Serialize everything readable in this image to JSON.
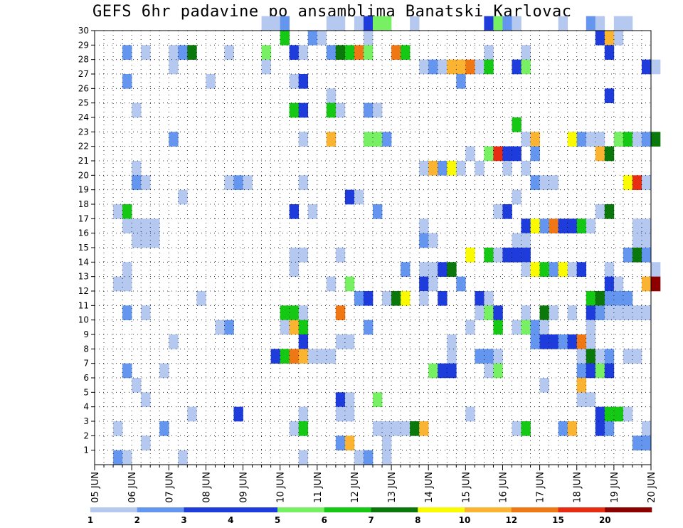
{
  "chart_data": {
    "type": "heatmap",
    "title": "GEFS 6hr padavine po ansamblima Banatski Karlovac",
    "xlabel": "",
    "ylabel": "",
    "x_ticks": [
      "05 JUN",
      "06 JUN",
      "07 JUN",
      "08 JUN",
      "09 JUN",
      "10 JUN",
      "11 JUN",
      "12 JUN",
      "13 JUN",
      "14 JUN",
      "15 JUN",
      "16 JUN",
      "17 JUN",
      "18 JUN",
      "19 JUN",
      "20 JUN"
    ],
    "y_ticks": [
      1,
      2,
      3,
      4,
      5,
      6,
      7,
      8,
      9,
      10,
      11,
      12,
      13,
      14,
      15,
      16,
      17,
      18,
      19,
      20,
      21,
      22,
      23,
      24,
      25,
      26,
      27,
      28,
      29,
      30
    ],
    "x_range": [
      0,
      60
    ],
    "y_range": [
      0,
      30
    ],
    "grid": true,
    "legend": {
      "placement": "bottom",
      "levels": [
        "1",
        "2",
        "3",
        "4",
        "5",
        "6",
        "7",
        "8",
        "10",
        "12",
        "15",
        "20"
      ],
      "colors": [
        "#b4c8f0",
        "#6496f0",
        "#1e3cdc",
        "#1c3ce0",
        "#78f064",
        "#14c814",
        "#0a780a",
        "#fafa00",
        "#fab432",
        "#f07814",
        "#e62d14",
        "#8c0000"
      ]
    },
    "cell_colors": [
      "#b4c8f0",
      "#6496f0",
      "#1e3cdc",
      "#78f064",
      "#14c814",
      "#0a780a",
      "#fafa00",
      "#fab432",
      "#f07814",
      "#e62d14",
      "#8c0000"
    ],
    "cells": [
      [
        18,
        30,
        0
      ],
      [
        19,
        30,
        0
      ],
      [
        20,
        30,
        1
      ],
      [
        25,
        30,
        0
      ],
      [
        26,
        30,
        0
      ],
      [
        28,
        30,
        0
      ],
      [
        29,
        30,
        2
      ],
      [
        30,
        30,
        3
      ],
      [
        31,
        30,
        3
      ],
      [
        34,
        30,
        0
      ],
      [
        42,
        30,
        2
      ],
      [
        43,
        30,
        3
      ],
      [
        44,
        30,
        1
      ],
      [
        45,
        30,
        0
      ],
      [
        50,
        30,
        0
      ],
      [
        53,
        30,
        1
      ],
      [
        54,
        30,
        0
      ],
      [
        56,
        30,
        0
      ],
      [
        57,
        30,
        0
      ],
      [
        20,
        29,
        4
      ],
      [
        23,
        29,
        1
      ],
      [
        24,
        29,
        0
      ],
      [
        29,
        29,
        0
      ],
      [
        54,
        29,
        2
      ],
      [
        55,
        29,
        7
      ],
      [
        56,
        29,
        0
      ],
      [
        3,
        28,
        1
      ],
      [
        5,
        28,
        0
      ],
      [
        8,
        28,
        0
      ],
      [
        9,
        28,
        1
      ],
      [
        10,
        28,
        5
      ],
      [
        14,
        28,
        0
      ],
      [
        18,
        28,
        3
      ],
      [
        21,
        28,
        2
      ],
      [
        22,
        28,
        0
      ],
      [
        25,
        28,
        1
      ],
      [
        26,
        28,
        5
      ],
      [
        27,
        28,
        4
      ],
      [
        28,
        28,
        8
      ],
      [
        29,
        28,
        3
      ],
      [
        32,
        28,
        8
      ],
      [
        33,
        28,
        4
      ],
      [
        42,
        28,
        0
      ],
      [
        46,
        28,
        0
      ],
      [
        55,
        28,
        2
      ],
      [
        8,
        27,
        0
      ],
      [
        18,
        27,
        0
      ],
      [
        35,
        27,
        0
      ],
      [
        36,
        27,
        1
      ],
      [
        37,
        27,
        0
      ],
      [
        38,
        27,
        7
      ],
      [
        39,
        27,
        7
      ],
      [
        40,
        27,
        8
      ],
      [
        41,
        27,
        0
      ],
      [
        42,
        27,
        4
      ],
      [
        45,
        27,
        2
      ],
      [
        46,
        27,
        3
      ],
      [
        59,
        27,
        2
      ],
      [
        60,
        27,
        0
      ],
      [
        3,
        26,
        1
      ],
      [
        12,
        26,
        0
      ],
      [
        21,
        26,
        0
      ],
      [
        22,
        26,
        2
      ],
      [
        39,
        26,
        1
      ],
      [
        25,
        25,
        0
      ],
      [
        55,
        25,
        2
      ],
      [
        4,
        24,
        0
      ],
      [
        21,
        24,
        4
      ],
      [
        22,
        24,
        2
      ],
      [
        25,
        24,
        4
      ],
      [
        26,
        24,
        0
      ],
      [
        29,
        24,
        1
      ],
      [
        30,
        24,
        0
      ],
      [
        45,
        23,
        4
      ],
      [
        8,
        22,
        1
      ],
      [
        22,
        22,
        0
      ],
      [
        25,
        22,
        7
      ],
      [
        29,
        22,
        3
      ],
      [
        30,
        22,
        3
      ],
      [
        31,
        22,
        1
      ],
      [
        46,
        22,
        0
      ],
      [
        47,
        22,
        7
      ],
      [
        51,
        22,
        6
      ],
      [
        52,
        22,
        1
      ],
      [
        53,
        22,
        0
      ],
      [
        54,
        22,
        0
      ],
      [
        56,
        22,
        3
      ],
      [
        57,
        22,
        4
      ],
      [
        58,
        22,
        0
      ],
      [
        59,
        22,
        1
      ],
      [
        60,
        22,
        5
      ],
      [
        40,
        21,
        0
      ],
      [
        42,
        21,
        3
      ],
      [
        43,
        21,
        9
      ],
      [
        44,
        21,
        2
      ],
      [
        45,
        21,
        2
      ],
      [
        47,
        21,
        1
      ],
      [
        54,
        21,
        7
      ],
      [
        55,
        21,
        5
      ],
      [
        4,
        20,
        0
      ],
      [
        35,
        20,
        0
      ],
      [
        36,
        20,
        7
      ],
      [
        37,
        20,
        1
      ],
      [
        38,
        20,
        6
      ],
      [
        39,
        20,
        0
      ],
      [
        41,
        20,
        0
      ],
      [
        44,
        20,
        0
      ],
      [
        46,
        20,
        0
      ],
      [
        4,
        19,
        1
      ],
      [
        5,
        19,
        0
      ],
      [
        14,
        19,
        0
      ],
      [
        15,
        19,
        1
      ],
      [
        16,
        19,
        0
      ],
      [
        22,
        19,
        0
      ],
      [
        47,
        19,
        1
      ],
      [
        48,
        19,
        0
      ],
      [
        49,
        19,
        0
      ],
      [
        57,
        19,
        6
      ],
      [
        58,
        19,
        9
      ],
      [
        59,
        19,
        0
      ],
      [
        9,
        18,
        0
      ],
      [
        27,
        18,
        2
      ],
      [
        28,
        18,
        0
      ],
      [
        45,
        18,
        0
      ],
      [
        2,
        17,
        0
      ],
      [
        3,
        17,
        4
      ],
      [
        21,
        17,
        2
      ],
      [
        23,
        17,
        0
      ],
      [
        30,
        17,
        1
      ],
      [
        43,
        17,
        0
      ],
      [
        44,
        17,
        2
      ],
      [
        54,
        17,
        0
      ],
      [
        55,
        17,
        5
      ],
      [
        3,
        16,
        0
      ],
      [
        4,
        16,
        0
      ],
      [
        5,
        16,
        0
      ],
      [
        6,
        16,
        0
      ],
      [
        35,
        16,
        0
      ],
      [
        46,
        16,
        2
      ],
      [
        47,
        16,
        6
      ],
      [
        48,
        16,
        1
      ],
      [
        49,
        16,
        8
      ],
      [
        50,
        16,
        2
      ],
      [
        51,
        16,
        2
      ],
      [
        52,
        16,
        4
      ],
      [
        53,
        16,
        0
      ],
      [
        58,
        16,
        0
      ],
      [
        59,
        16,
        0
      ],
      [
        4,
        15,
        0
      ],
      [
        5,
        15,
        0
      ],
      [
        6,
        15,
        0
      ],
      [
        35,
        15,
        1
      ],
      [
        36,
        15,
        0
      ],
      [
        45,
        15,
        0
      ],
      [
        46,
        15,
        0
      ],
      [
        58,
        15,
        0
      ],
      [
        59,
        15,
        0
      ],
      [
        21,
        14,
        0
      ],
      [
        22,
        14,
        0
      ],
      [
        26,
        14,
        0
      ],
      [
        40,
        14,
        6
      ],
      [
        42,
        14,
        4
      ],
      [
        43,
        14,
        0
      ],
      [
        44,
        14,
        2
      ],
      [
        45,
        14,
        2
      ],
      [
        46,
        14,
        2
      ],
      [
        57,
        14,
        1
      ],
      [
        58,
        14,
        5
      ],
      [
        59,
        14,
        1
      ],
      [
        3,
        13,
        0
      ],
      [
        21,
        13,
        0
      ],
      [
        33,
        13,
        1
      ],
      [
        35,
        13,
        0
      ],
      [
        36,
        13,
        0
      ],
      [
        37,
        13,
        2
      ],
      [
        38,
        13,
        5
      ],
      [
        46,
        13,
        0
      ],
      [
        47,
        13,
        6
      ],
      [
        48,
        13,
        4
      ],
      [
        49,
        13,
        1
      ],
      [
        50,
        13,
        6
      ],
      [
        51,
        13,
        0
      ],
      [
        52,
        13,
        2
      ],
      [
        55,
        13,
        0
      ],
      [
        60,
        13,
        0
      ],
      [
        2,
        12,
        0
      ],
      [
        3,
        12,
        0
      ],
      [
        25,
        12,
        0
      ],
      [
        27,
        12,
        3
      ],
      [
        35,
        12,
        2
      ],
      [
        36,
        12,
        0
      ],
      [
        39,
        12,
        1
      ],
      [
        55,
        12,
        2
      ],
      [
        56,
        12,
        0
      ],
      [
        59,
        12,
        7
      ],
      [
        60,
        12,
        10
      ],
      [
        11,
        11,
        0
      ],
      [
        28,
        11,
        1
      ],
      [
        29,
        11,
        2
      ],
      [
        31,
        11,
        0
      ],
      [
        32,
        11,
        5
      ],
      [
        33,
        11,
        6
      ],
      [
        35,
        11,
        0
      ],
      [
        37,
        11,
        2
      ],
      [
        41,
        11,
        2
      ],
      [
        42,
        11,
        0
      ],
      [
        53,
        11,
        4
      ],
      [
        54,
        11,
        5
      ],
      [
        55,
        11,
        1
      ],
      [
        56,
        11,
        1
      ],
      [
        57,
        11,
        1
      ],
      [
        3,
        10,
        1
      ],
      [
        5,
        10,
        0
      ],
      [
        20,
        10,
        4
      ],
      [
        21,
        10,
        4
      ],
      [
        22,
        10,
        0
      ],
      [
        26,
        10,
        8
      ],
      [
        41,
        10,
        0
      ],
      [
        42,
        10,
        3
      ],
      [
        43,
        10,
        2
      ],
      [
        46,
        10,
        0
      ],
      [
        48,
        10,
        5
      ],
      [
        49,
        10,
        0
      ],
      [
        51,
        10,
        0
      ],
      [
        53,
        10,
        2
      ],
      [
        54,
        10,
        1
      ],
      [
        55,
        10,
        0
      ],
      [
        56,
        10,
        0
      ],
      [
        57,
        10,
        0
      ],
      [
        58,
        10,
        0
      ],
      [
        59,
        10,
        0
      ],
      [
        13,
        9,
        0
      ],
      [
        14,
        9,
        1
      ],
      [
        20,
        9,
        0
      ],
      [
        21,
        9,
        7
      ],
      [
        22,
        9,
        4
      ],
      [
        29,
        9,
        1
      ],
      [
        40,
        9,
        0
      ],
      [
        43,
        9,
        4
      ],
      [
        45,
        9,
        0
      ],
      [
        46,
        9,
        3
      ],
      [
        47,
        9,
        1
      ],
      [
        48,
        9,
        0
      ],
      [
        53,
        9,
        0
      ],
      [
        8,
        8,
        0
      ],
      [
        22,
        8,
        2
      ],
      [
        26,
        8,
        0
      ],
      [
        27,
        8,
        0
      ],
      [
        38,
        8,
        0
      ],
      [
        47,
        8,
        1
      ],
      [
        48,
        8,
        2
      ],
      [
        49,
        8,
        2
      ],
      [
        50,
        8,
        1
      ],
      [
        51,
        8,
        2
      ],
      [
        52,
        8,
        8
      ],
      [
        53,
        8,
        0
      ],
      [
        19,
        7,
        2
      ],
      [
        20,
        7,
        4
      ],
      [
        21,
        7,
        8
      ],
      [
        22,
        7,
        7
      ],
      [
        23,
        7,
        0
      ],
      [
        24,
        7,
        0
      ],
      [
        25,
        7,
        0
      ],
      [
        38,
        7,
        0
      ],
      [
        41,
        7,
        1
      ],
      [
        42,
        7,
        1
      ],
      [
        43,
        7,
        0
      ],
      [
        52,
        7,
        0
      ],
      [
        53,
        7,
        5
      ],
      [
        54,
        7,
        0
      ],
      [
        55,
        7,
        1
      ],
      [
        57,
        7,
        0
      ],
      [
        58,
        7,
        0
      ],
      [
        3,
        6,
        1
      ],
      [
        7,
        6,
        0
      ],
      [
        36,
        6,
        3
      ],
      [
        37,
        6,
        2
      ],
      [
        38,
        6,
        2
      ],
      [
        42,
        6,
        0
      ],
      [
        43,
        6,
        3
      ],
      [
        52,
        6,
        1
      ],
      [
        53,
        6,
        2
      ],
      [
        54,
        6,
        3
      ],
      [
        55,
        6,
        2
      ],
      [
        4,
        5,
        0
      ],
      [
        48,
        5,
        0
      ],
      [
        52,
        5,
        7
      ],
      [
        5,
        4,
        0
      ],
      [
        26,
        4,
        2
      ],
      [
        27,
        4,
        0
      ],
      [
        30,
        4,
        3
      ],
      [
        52,
        4,
        0
      ],
      [
        53,
        4,
        0
      ],
      [
        10,
        3,
        0
      ],
      [
        15,
        3,
        2
      ],
      [
        22,
        3,
        0
      ],
      [
        26,
        3,
        0
      ],
      [
        27,
        3,
        0
      ],
      [
        40,
        3,
        0
      ],
      [
        54,
        3,
        2
      ],
      [
        55,
        3,
        4
      ],
      [
        56,
        3,
        4
      ],
      [
        57,
        3,
        0
      ],
      [
        2,
        2,
        0
      ],
      [
        7,
        2,
        1
      ],
      [
        21,
        2,
        0
      ],
      [
        22,
        2,
        4
      ],
      [
        30,
        2,
        0
      ],
      [
        31,
        2,
        0
      ],
      [
        32,
        2,
        0
      ],
      [
        33,
        2,
        0
      ],
      [
        34,
        2,
        5
      ],
      [
        35,
        2,
        7
      ],
      [
        45,
        2,
        0
      ],
      [
        46,
        2,
        4
      ],
      [
        50,
        2,
        1
      ],
      [
        51,
        2,
        7
      ],
      [
        54,
        2,
        2
      ],
      [
        55,
        2,
        1
      ],
      [
        59,
        2,
        0
      ],
      [
        5,
        1,
        0
      ],
      [
        26,
        1,
        1
      ],
      [
        27,
        1,
        7
      ],
      [
        31,
        1,
        0
      ],
      [
        58,
        1,
        1
      ],
      [
        59,
        1,
        1
      ],
      [
        2,
        0,
        1
      ],
      [
        3,
        0,
        0
      ],
      [
        9,
        0,
        0
      ],
      [
        22,
        0,
        0
      ],
      [
        28,
        0,
        0
      ],
      [
        29,
        0,
        1
      ],
      [
        31,
        0,
        0
      ]
    ]
  }
}
